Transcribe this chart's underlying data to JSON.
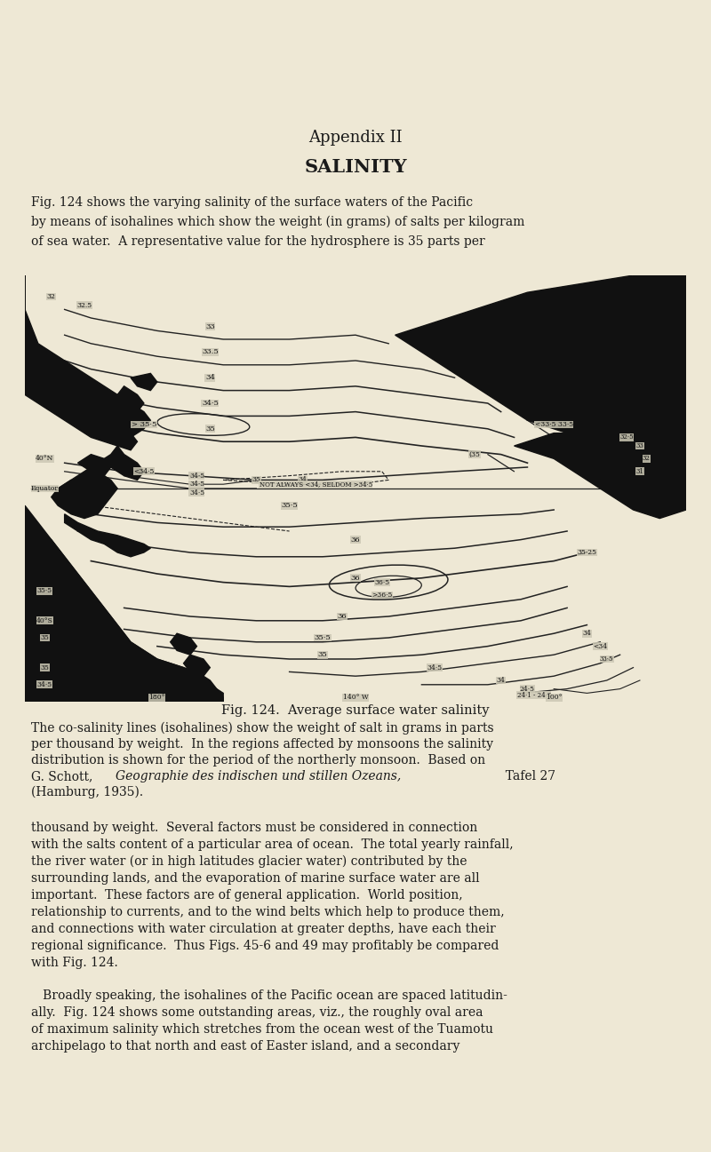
{
  "bg_color": "#eee8d5",
  "page_width": 8.0,
  "page_height": 12.97,
  "dpi": 100,
  "header_text": "Appendix II",
  "title_text": "SALINITY",
  "intro_text": "Fig. 124 shows the varying salinity of the surface waters of the Pacific\nby means of isohalines which show the weight (in grams) of salts per kilogram\nof sea water.  A representative value for the hydrosphere is 35 parts per",
  "fig_caption_title": "Fig. 124.  Average surface water salinity",
  "cap_line1": "The co-salinity lines (isohalines) show the weight of salt in grams in parts",
  "cap_line2": "per thousand by weight.  In the regions affected by monsoons the salinity",
  "cap_line3": "distribution is shown for the period of the northerly monsoon.  Based on",
  "cap_line4": "G. Schott,  Geographie des indischen und stillen Ozeans,  Tafel 27",
  "cap_line5": "(Hamburg, 1935).",
  "body1_lines": [
    "thousand by weight.  Several factors must be considered in connection",
    "with the salts content of a particular area of ocean.  The total yearly rainfall,",
    "the river water (or in high latitudes glacier water) contributed by the",
    "surrounding lands, and the evaporation of marine surface water are all",
    "important.  These factors are of general application.  World position,",
    "relationship to currents, and to the wind belts which help to produce them,",
    "and connections with water circulation at greater depths, have each their",
    "regional significance.  Thus Figs. 45-6 and 49 may profitably be compared",
    "with Fig. 124."
  ],
  "body2_lines": [
    "   Broadly speaking, the isohalines of the Pacific ocean are spaced latitudin-",
    "ally.  Fig. 124 shows some outstanding areas, viz., the roughly oval area",
    "of maximum salinity which stretches from the ocean west of the Tuamotu",
    "archipelago to that north and east of Easter island, and a secondary"
  ],
  "text_color": "#1a1a1a",
  "map_bg": "#ccc8b4",
  "land_color": "#111111",
  "line_color": "#222222"
}
